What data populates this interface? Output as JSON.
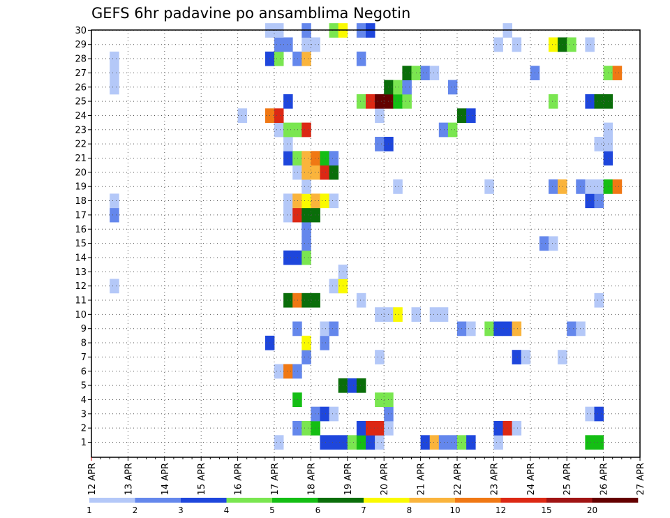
{
  "chart_data": {
    "type": "heatmap",
    "title": "GEFS 6hr padavine po ansamblima Negotin",
    "xlabel": "",
    "ylabel": "",
    "x_ticks": [
      "12 APR",
      "13 APR",
      "14 APR",
      "15 APR",
      "16 APR",
      "17 APR",
      "18 APR",
      "19 APR",
      "20 APR",
      "21 APR",
      "22 APR",
      "23 APR",
      "24 APR",
      "25 APR",
      "26 APR",
      "27 APR"
    ],
    "y_ticks": [
      "1",
      "2",
      "3",
      "4",
      "5",
      "6",
      "7",
      "8",
      "9",
      "10",
      "11",
      "12",
      "13",
      "14",
      "15",
      "16",
      "17",
      "18",
      "19",
      "20",
      "21",
      "22",
      "23",
      "24",
      "25",
      "26",
      "27",
      "28",
      "29",
      "30"
    ],
    "time_step_hours": 6,
    "grid": "dotted",
    "colorbar": {
      "position": "bottom",
      "labels": [
        "1",
        "2",
        "3",
        "4",
        "5",
        "6",
        "7",
        "8",
        "10",
        "12",
        "15",
        "20"
      ],
      "colors": [
        "#b4c8f8",
        "#6487ec",
        "#1e46dc",
        "#7ae650",
        "#14be14",
        "#0a6e0a",
        "#fafa00",
        "#fab43c",
        "#f07814",
        "#dc2814",
        "#a01414",
        "#640000"
      ]
    },
    "series": [
      {
        "member": 1,
        "values": [
          [
            20,
            1
          ],
          [
            25,
            3
          ],
          [
            26,
            3
          ],
          [
            27,
            3
          ],
          [
            28,
            4
          ],
          [
            29,
            5
          ],
          [
            30,
            3
          ],
          [
            31,
            1
          ],
          [
            36,
            3
          ],
          [
            37,
            8
          ],
          [
            38,
            2
          ],
          [
            39,
            2
          ],
          [
            40,
            4
          ],
          [
            41,
            3
          ],
          [
            44,
            1
          ],
          [
            54,
            5
          ],
          [
            55,
            5
          ]
        ]
      },
      {
        "member": 2,
        "values": [
          [
            22,
            2
          ],
          [
            23,
            4
          ],
          [
            24,
            5
          ],
          [
            29,
            3
          ],
          [
            30,
            13
          ],
          [
            31,
            13
          ],
          [
            32,
            1
          ],
          [
            44,
            3
          ],
          [
            45,
            13
          ],
          [
            46,
            1
          ]
        ]
      },
      {
        "member": 3,
        "values": [
          [
            24,
            2
          ],
          [
            25,
            3
          ],
          [
            26,
            1
          ],
          [
            32,
            2
          ],
          [
            54,
            1
          ],
          [
            55,
            3
          ]
        ]
      },
      {
        "member": 4,
        "values": [
          [
            22,
            5
          ],
          [
            31,
            4
          ],
          [
            32,
            4
          ]
        ]
      },
      {
        "member": 5,
        "values": [
          [
            27,
            6
          ],
          [
            28,
            3
          ],
          [
            29,
            6
          ]
        ]
      },
      {
        "member": 6,
        "values": [
          [
            20,
            1
          ],
          [
            21,
            10
          ],
          [
            22,
            2
          ]
        ]
      },
      {
        "member": 7,
        "values": [
          [
            23,
            2
          ],
          [
            31,
            1
          ],
          [
            46,
            3
          ],
          [
            47,
            1
          ],
          [
            51,
            1
          ]
        ]
      },
      {
        "member": 8,
        "values": [
          [
            19,
            3
          ],
          [
            23,
            7
          ],
          [
            25,
            2
          ]
        ]
      },
      {
        "member": 9,
        "values": [
          [
            22,
            2
          ],
          [
            25,
            1
          ],
          [
            26,
            2
          ],
          [
            40,
            2
          ],
          [
            41,
            1
          ],
          [
            43,
            4
          ],
          [
            44,
            3
          ],
          [
            45,
            3
          ],
          [
            46,
            9
          ],
          [
            52,
            2
          ],
          [
            53,
            1
          ]
        ]
      },
      {
        "member": 10,
        "values": [
          [
            31,
            1
          ],
          [
            32,
            1
          ],
          [
            33,
            7
          ],
          [
            35,
            1
          ],
          [
            37,
            1
          ],
          [
            38,
            1
          ]
        ]
      },
      {
        "member": 11,
        "values": [
          [
            21,
            6
          ],
          [
            22,
            10
          ],
          [
            23,
            6
          ],
          [
            24,
            6
          ],
          [
            29,
            1
          ],
          [
            55,
            1
          ]
        ]
      },
      {
        "member": 12,
        "values": [
          [
            2,
            1
          ],
          [
            26,
            1
          ],
          [
            27,
            7
          ]
        ]
      },
      {
        "member": 13,
        "values": [
          [
            27,
            1
          ]
        ]
      },
      {
        "member": 14,
        "values": [
          [
            21,
            3
          ],
          [
            22,
            3
          ],
          [
            23,
            4
          ]
        ]
      },
      {
        "member": 15,
        "values": [
          [
            23,
            2
          ],
          [
            49,
            2
          ],
          [
            50,
            1
          ]
        ]
      },
      {
        "member": 16,
        "values": [
          [
            23,
            2
          ]
        ]
      },
      {
        "member": 17,
        "values": [
          [
            2,
            2
          ],
          [
            21,
            1
          ],
          [
            22,
            13
          ],
          [
            23,
            6
          ],
          [
            24,
            6
          ]
        ]
      },
      {
        "member": 18,
        "values": [
          [
            2,
            1
          ],
          [
            21,
            1
          ],
          [
            22,
            8
          ],
          [
            23,
            7
          ],
          [
            24,
            8
          ],
          [
            25,
            7
          ],
          [
            26,
            1
          ],
          [
            54,
            3
          ],
          [
            55,
            2
          ]
        ]
      },
      {
        "member": 19,
        "values": [
          [
            23,
            1
          ],
          [
            33,
            1
          ],
          [
            43,
            1
          ],
          [
            50,
            2
          ],
          [
            51,
            8
          ],
          [
            53,
            2
          ],
          [
            54,
            1
          ],
          [
            55,
            1
          ],
          [
            56,
            5
          ],
          [
            57,
            10
          ]
        ]
      },
      {
        "member": 20,
        "values": [
          [
            22,
            1
          ],
          [
            23,
            8
          ],
          [
            24,
            8
          ],
          [
            25,
            13
          ],
          [
            26,
            6
          ]
        ]
      },
      {
        "member": 21,
        "values": [
          [
            21,
            3
          ],
          [
            22,
            4
          ],
          [
            23,
            8
          ],
          [
            24,
            10
          ],
          [
            25,
            5
          ],
          [
            26,
            2
          ],
          [
            56,
            3
          ]
        ]
      },
      {
        "member": 22,
        "values": [
          [
            21,
            1
          ],
          [
            31,
            2
          ],
          [
            32,
            3
          ],
          [
            55,
            1
          ],
          [
            56,
            1
          ]
        ]
      },
      {
        "member": 23,
        "values": [
          [
            20,
            1
          ],
          [
            21,
            4
          ],
          [
            22,
            4
          ],
          [
            23,
            13
          ],
          [
            38,
            2
          ],
          [
            39,
            4
          ],
          [
            56,
            1
          ]
        ]
      },
      {
        "member": 24,
        "values": [
          [
            16,
            1
          ],
          [
            19,
            10
          ],
          [
            20,
            13
          ],
          [
            31,
            1
          ],
          [
            40,
            6
          ],
          [
            41,
            3
          ]
        ]
      },
      {
        "member": 25,
        "values": [
          [
            21,
            3
          ],
          [
            29,
            4
          ],
          [
            30,
            13
          ],
          [
            31,
            20
          ],
          [
            32,
            20
          ],
          [
            33,
            5
          ],
          [
            34,
            4
          ],
          [
            50,
            4
          ],
          [
            54,
            3
          ],
          [
            55,
            6
          ],
          [
            56,
            6
          ]
        ]
      },
      {
        "member": 26,
        "values": [
          [
            2,
            1
          ],
          [
            32,
            6
          ],
          [
            33,
            4
          ],
          [
            34,
            2
          ],
          [
            39,
            2
          ]
        ]
      },
      {
        "member": 27,
        "values": [
          [
            2,
            1
          ],
          [
            34,
            6
          ],
          [
            35,
            4
          ],
          [
            36,
            2
          ],
          [
            37,
            1
          ],
          [
            48,
            2
          ],
          [
            56,
            4
          ],
          [
            57,
            10
          ]
        ]
      },
      {
        "member": 28,
        "values": [
          [
            2,
            1
          ],
          [
            19,
            3
          ],
          [
            20,
            4
          ],
          [
            22,
            2
          ],
          [
            23,
            8
          ],
          [
            29,
            2
          ]
        ]
      },
      {
        "member": 29,
        "values": [
          [
            20,
            2
          ],
          [
            21,
            2
          ],
          [
            23,
            1
          ],
          [
            24,
            1
          ],
          [
            44,
            1
          ],
          [
            46,
            1
          ],
          [
            50,
            7
          ],
          [
            51,
            6
          ],
          [
            52,
            4
          ],
          [
            54,
            1
          ]
        ]
      },
      {
        "member": 30,
        "values": [
          [
            19,
            1
          ],
          [
            20,
            1
          ],
          [
            23,
            2
          ],
          [
            26,
            4
          ],
          [
            27,
            7
          ],
          [
            29,
            2
          ],
          [
            30,
            3
          ],
          [
            45,
            1
          ]
        ]
      }
    ]
  }
}
